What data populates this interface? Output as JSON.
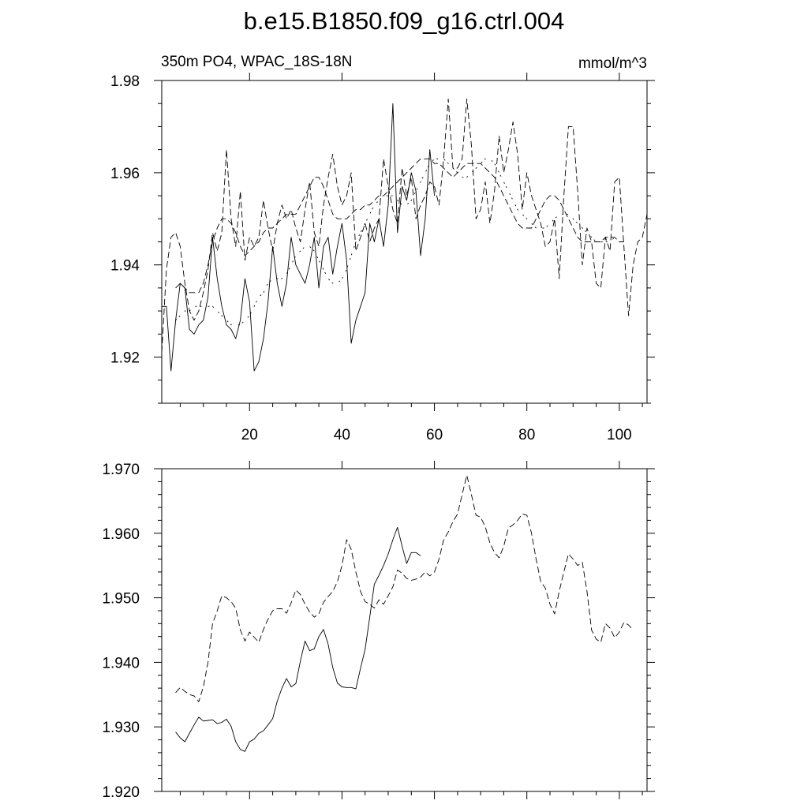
{
  "title": "b.e15.B1850.f09_g16.ctrl.004",
  "chart_data": [
    {
      "type": "line",
      "left_label": "350m PO4, WPAC_18S-18N",
      "right_label": "mmol/m^3",
      "xlim": [
        1,
        106
      ],
      "ylim": [
        1.91,
        1.98
      ],
      "x_ticks": [
        20,
        40,
        60,
        80,
        100
      ],
      "x_tick_labels": [
        "20",
        "40",
        "60",
        "80",
        "100"
      ],
      "x_minor_step": 5,
      "y_ticks": [
        1.92,
        1.94,
        1.96,
        1.98
      ],
      "y_tick_labels": [
        "1.92",
        "1.94",
        "1.96",
        "1.98"
      ],
      "y_minor_step": 0.005,
      "series": [
        {
          "style": "solid",
          "x_start": 1,
          "values": [
            1.931,
            1.931,
            1.917,
            1.928,
            1.936,
            1.935,
            1.926,
            1.925,
            1.927,
            1.928,
            1.933,
            1.946,
            1.937,
            1.931,
            1.927,
            1.926,
            1.924,
            1.928,
            1.937,
            1.932,
            1.917,
            1.919,
            1.924,
            1.932,
            1.944,
            1.936,
            1.931,
            1.936,
            1.946,
            1.94,
            1.938,
            1.936,
            1.94,
            1.946,
            1.935,
            1.944,
            1.946,
            1.938,
            1.944,
            1.949,
            1.941,
            1.923,
            1.928,
            1.931,
            1.934,
            1.949,
            1.945,
            1.95,
            1.944,
            1.953,
            1.975,
            1.947,
            1.957,
            1.954,
            1.96,
            1.956,
            1.942,
            1.95,
            1.965,
            1.955
          ]
        },
        {
          "style": "dashed",
          "x_start": 1,
          "values": [
            1.921,
            1.939,
            1.946,
            1.947,
            1.944,
            1.936,
            1.93,
            1.928,
            1.93,
            1.934,
            1.939,
            1.947,
            1.943,
            1.947,
            1.965,
            1.95,
            1.944,
            1.956,
            1.941,
            1.946,
            1.944,
            1.946,
            1.954,
            1.948,
            1.943,
            1.949,
            1.953,
            1.95,
            1.952,
            1.948,
            1.945,
            1.952,
            1.958,
            1.947,
            1.944,
            1.953,
            1.959,
            1.964,
            1.957,
            1.953,
            1.955,
            1.96,
            1.943,
            1.946,
            1.949,
            1.945,
            1.948,
            1.95,
            1.963,
            1.957,
            1.952,
            1.949,
            1.961,
            1.955,
            1.959,
            1.95,
            1.953,
            1.955,
            1.958,
            1.957,
            1.953,
            1.963,
            1.976,
            1.961,
            1.961,
            1.963,
            1.976,
            1.966,
            1.95,
            1.952,
            1.958,
            1.949,
            1.956,
            1.968,
            1.96,
            1.965,
            1.971,
            1.964,
            1.952,
            1.96,
            1.955,
            1.952,
            1.949,
            1.944,
            1.945,
            1.95,
            1.937,
            1.955,
            1.97,
            1.97,
            1.956,
            1.94,
            1.948,
            1.945,
            1.936,
            1.935,
            1.946,
            1.943,
            1.958,
            1.959,
            1.944,
            1.929,
            1.94,
            1.945,
            1.946,
            1.951
          ]
        },
        {
          "style": "dashed",
          "x_start": 4,
          "values": [
            1.935,
            1.936,
            1.935,
            1.934,
            1.934,
            1.934,
            1.936,
            1.94,
            1.945,
            1.948,
            1.95,
            1.95,
            1.949,
            1.947,
            1.944,
            1.942,
            1.943,
            1.944,
            1.945,
            1.947,
            1.948,
            1.948,
            1.949,
            1.95,
            1.951,
            1.951,
            1.951,
            1.953,
            1.955,
            1.957,
            1.959,
            1.959,
            1.957,
            1.954,
            1.951,
            1.95,
            1.95,
            1.95,
            1.951,
            1.952,
            1.952,
            1.953,
            1.953,
            1.954,
            1.955,
            1.955,
            1.956,
            1.957,
            1.958,
            1.959,
            1.96,
            1.961,
            1.962,
            1.963,
            1.963,
            1.963,
            1.962,
            1.962,
            1.961,
            1.96,
            1.959,
            1.96,
            1.961,
            1.962,
            1.962,
            1.962,
            1.962,
            1.961,
            1.96,
            1.959,
            1.957,
            1.955,
            1.953,
            1.951,
            1.949,
            1.948,
            1.948,
            1.948,
            1.95,
            1.952,
            1.954,
            1.955,
            1.955,
            1.954,
            1.952,
            1.95,
            1.948,
            1.946,
            1.945,
            1.945,
            1.945,
            1.945,
            1.945,
            1.946,
            1.946,
            1.946,
            1.945,
            1.945
          ]
        },
        {
          "style": "dashdot",
          "x_start": 4,
          "values": [
            1.928,
            1.929,
            1.93,
            1.93,
            1.931,
            1.931,
            1.931,
            1.931,
            1.931,
            1.93,
            1.929,
            1.928,
            1.927,
            1.927,
            1.927,
            1.928,
            1.929,
            1.931,
            1.933,
            1.934,
            1.936,
            1.937,
            1.937,
            1.937,
            1.938,
            1.94,
            1.942,
            1.943,
            1.944,
            1.944,
            1.943,
            1.941,
            1.939,
            1.937,
            1.936,
            1.936,
            1.937,
            1.939,
            1.942,
            1.945,
            1.947,
            1.949,
            1.951,
            1.953,
            1.954,
            1.955,
            1.955,
            1.955,
            1.954,
            1.953,
            1.953,
            1.954,
            1.956,
            1.958,
            1.96,
            1.962,
            1.963,
            1.963,
            1.963,
            1.962,
            1.961,
            1.96,
            1.959,
            1.959,
            1.96,
            1.961,
            1.962,
            1.963,
            1.963,
            1.962,
            1.96,
            1.958,
            1.956,
            1.954,
            1.952,
            1.951,
            1.95,
            1.949,
            1.948,
            1.948,
            1.948,
            1.949,
            1.95,
            1.951,
            1.951,
            1.951,
            1.95,
            1.949,
            1.948,
            1.947,
            1.946,
            1.945,
            1.945,
            1.945,
            1.945,
            1.946
          ]
        }
      ]
    },
    {
      "type": "line",
      "xlim": [
        1,
        106
      ],
      "ylim": [
        1.92,
        1.97
      ],
      "x_ticks": [
        20,
        40,
        60,
        80,
        100
      ],
      "x_tick_labels": [],
      "x_minor_step": 5,
      "y_ticks": [
        1.92,
        1.93,
        1.94,
        1.95,
        1.96,
        1.97
      ],
      "y_tick_labels": [
        "1.920",
        "1.930",
        "1.940",
        "1.950",
        "1.960",
        "1.970"
      ],
      "y_minor_step": 0.002,
      "series": [
        {
          "style": "solid",
          "x_start": 4,
          "values": [
            1.9292,
            1.9283,
            1.9277,
            1.929,
            1.9303,
            1.9315,
            1.9309,
            1.931,
            1.9311,
            1.9305,
            1.9307,
            1.9312,
            1.9301,
            1.9277,
            1.9265,
            1.9262,
            1.9277,
            1.9281,
            1.929,
            1.9294,
            1.9303,
            1.9313,
            1.934,
            1.936,
            1.9375,
            1.9362,
            1.9367,
            1.9402,
            1.9433,
            1.9418,
            1.9421,
            1.944,
            1.9451,
            1.9428,
            1.9392,
            1.9368,
            1.9362,
            1.9361,
            1.9361,
            1.9359,
            1.9391,
            1.942,
            1.947,
            1.9521,
            1.9535,
            1.955,
            1.9568,
            1.959,
            1.9609,
            1.958,
            1.9553,
            1.957,
            1.957,
            1.9565
          ]
        },
        {
          "style": "dashed",
          "x_start": 4,
          "values": [
            1.9353,
            1.9361,
            1.9355,
            1.935,
            1.9348,
            1.9339,
            1.9362,
            1.94,
            1.946,
            1.948,
            1.9503,
            1.95,
            1.9494,
            1.9484,
            1.945,
            1.9433,
            1.9447,
            1.9439,
            1.9431,
            1.9451,
            1.9467,
            1.948,
            1.9483,
            1.9483,
            1.9476,
            1.9492,
            1.9512,
            1.9505,
            1.949,
            1.9478,
            1.947,
            1.9475,
            1.9493,
            1.9502,
            1.951,
            1.9525,
            1.955,
            1.959,
            1.9575,
            1.954,
            1.951,
            1.9494,
            1.949,
            1.9484,
            1.9497,
            1.949,
            1.9503,
            1.9517,
            1.9543,
            1.9538,
            1.953,
            1.9527,
            1.9529,
            1.9532,
            1.954,
            1.9534,
            1.954,
            1.956,
            1.959,
            1.9602,
            1.9618,
            1.963,
            1.966,
            1.969,
            1.966,
            1.9628,
            1.9625,
            1.961,
            1.9585,
            1.957,
            1.9562,
            1.958,
            1.9608,
            1.9613,
            1.962,
            1.963,
            1.9628,
            1.96,
            1.956,
            1.9525,
            1.9515,
            1.949,
            1.9475,
            1.951,
            1.954,
            1.9568,
            1.956,
            1.955,
            1.9555,
            1.951,
            1.945,
            1.9436,
            1.9431,
            1.946,
            1.9453,
            1.9438,
            1.9447,
            1.9462,
            1.9458,
            1.945
          ]
        }
      ]
    }
  ]
}
